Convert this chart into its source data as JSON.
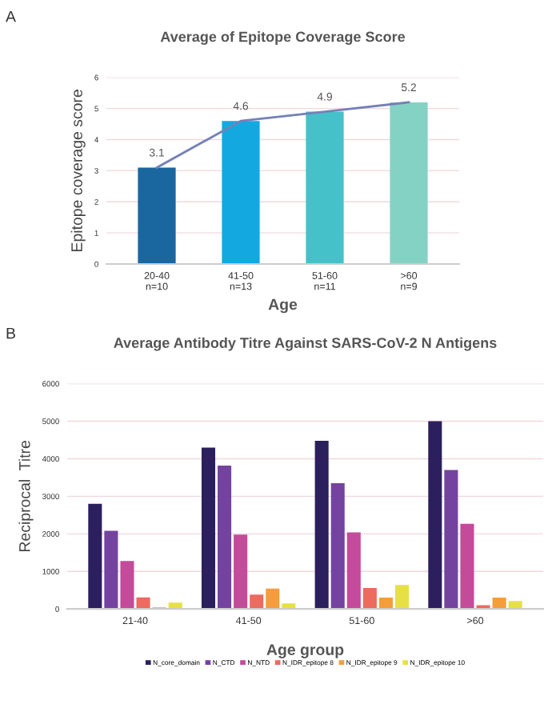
{
  "chart_data": [
    {
      "type": "bar",
      "title": "Average of Epitope Coverage Score",
      "xlabel": "Age",
      "ylabel": "Epitope coverage score",
      "annotations": [
        "A"
      ],
      "categories": [
        "20-40\nn=10",
        "41-50\nn=13",
        "51-60\nn=11",
        ">60\nn=9"
      ],
      "series": [
        {
          "type": "bar",
          "colors": [
            "#1a67a0",
            "#13a9e0",
            "#45c2c9",
            "#84d2c3"
          ],
          "values": [
            3.1,
            4.6,
            4.9,
            5.2
          ],
          "value_labels": [
            "3.1",
            "4.6",
            "4.9",
            "5.2"
          ]
        },
        {
          "type": "line",
          "color": "#7480b8",
          "values": [
            3.1,
            4.6,
            4.9,
            5.2
          ]
        }
      ],
      "ylim": [
        0,
        6
      ],
      "yticks": [
        0,
        1,
        2,
        3,
        4,
        5,
        6
      ],
      "grid": "y",
      "legend": false
    },
    {
      "type": "bar",
      "title": "Average Antibody Titre Against SARS-CoV-2 N Antigens",
      "xlabel": "Age group",
      "ylabel": "Reciprocal  Titre",
      "annotations": [
        "B"
      ],
      "categories": [
        "21-40",
        "41-50",
        "51-60",
        ">60"
      ],
      "series": [
        {
          "name": "N_core_domain",
          "color": "#2c1f5e",
          "values": [
            2800,
            4300,
            4480,
            5000
          ]
        },
        {
          "name": "N_CTD",
          "color": "#7443a0",
          "values": [
            2080,
            3820,
            3350,
            3700
          ]
        },
        {
          "name": "N_NTD",
          "color": "#c44a9a",
          "values": [
            1280,
            1980,
            2040,
            2270
          ]
        },
        {
          "name": "N_IDR_epitope 8",
          "color": "#ec6a5e",
          "values": [
            310,
            380,
            560,
            100
          ]
        },
        {
          "name": "N_IDR_epitope 9",
          "color": "#f59d3a",
          "values": [
            40,
            540,
            300,
            300
          ]
        },
        {
          "name": "N_IDR_epitope 10",
          "color": "#e7e045",
          "values": [
            170,
            150,
            640,
            210
          ]
        }
      ],
      "ylim": [
        0,
        6000
      ],
      "yticks": [
        0,
        1000,
        2000,
        3000,
        4000,
        5000,
        6000
      ],
      "grid": "y",
      "legend": "bottom"
    }
  ]
}
